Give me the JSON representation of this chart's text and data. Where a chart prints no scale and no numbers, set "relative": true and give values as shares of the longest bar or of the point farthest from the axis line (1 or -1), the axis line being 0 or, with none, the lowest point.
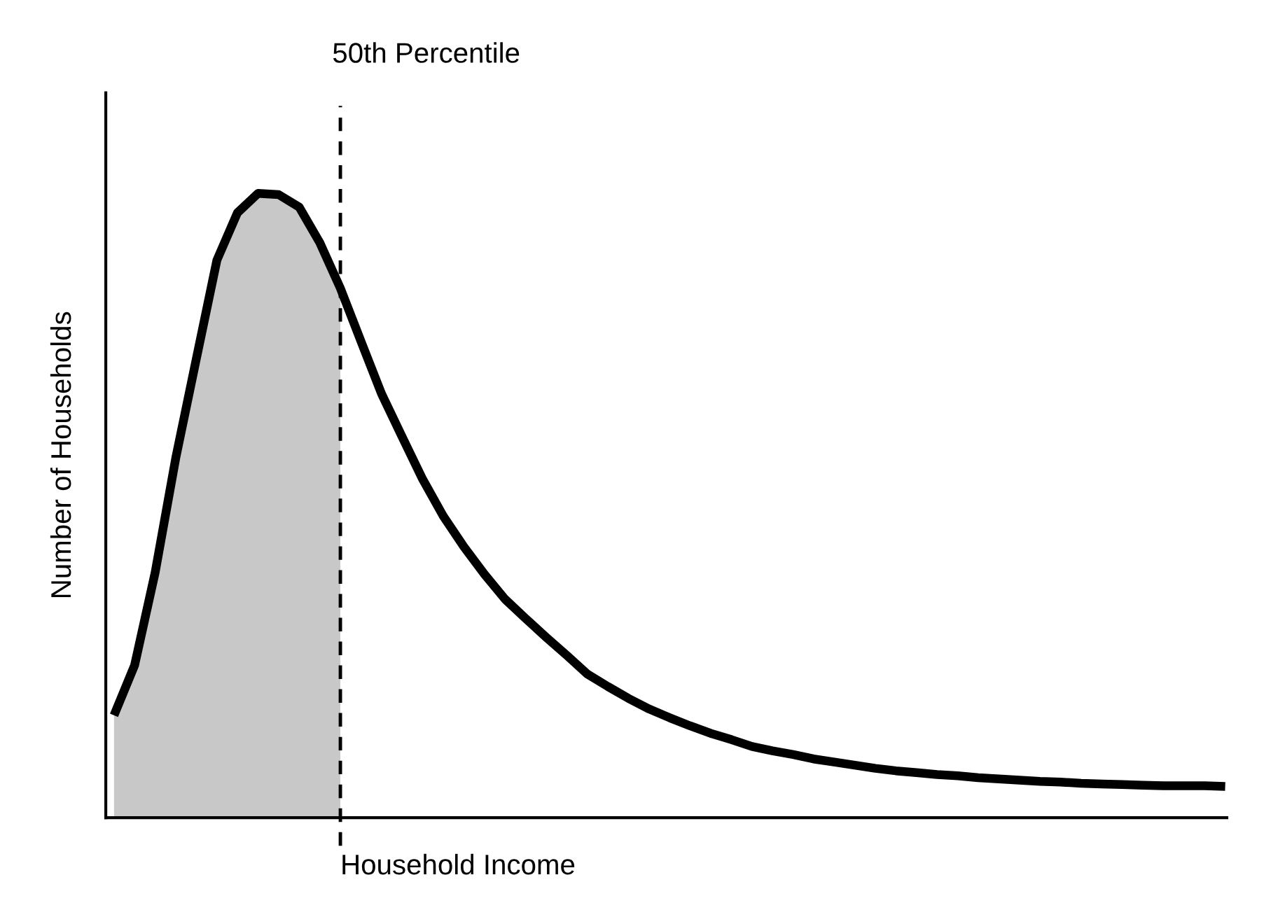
{
  "chart_data": {
    "type": "line",
    "relative": true,
    "xlabel": "Household Income",
    "ylabel": "Number of Households",
    "categories": [
      null,
      null,
      null,
      null,
      null,
      null,
      null,
      null,
      null,
      null,
      null,
      null,
      null,
      null,
      null,
      null,
      null,
      null,
      null,
      null,
      null,
      null,
      null,
      null,
      null,
      null,
      null,
      null,
      null,
      null,
      null,
      null,
      null,
      null,
      null,
      null,
      null,
      null,
      null,
      null,
      null,
      null,
      null,
      null,
      null,
      null,
      null,
      null,
      null,
      null,
      null,
      null,
      null,
      null,
      null
    ],
    "series": [
      {
        "type": "area",
        "color": "#c8c8c8",
        "values": [
          0.164,
          0.244,
          0.393,
          0.576,
          0.735,
          0.893,
          0.969,
          1.0,
          0.998,
          0.978,
          0.921,
          0.848,
          null,
          null,
          null,
          null,
          null,
          null,
          null,
          null,
          null,
          null,
          null,
          null,
          null,
          null,
          null,
          null,
          null,
          null,
          null,
          null,
          null,
          null,
          null,
          null,
          null,
          null,
          null,
          null,
          null,
          null,
          null,
          null,
          null,
          null,
          null,
          null,
          null,
          null,
          null,
          null,
          null,
          null,
          null
        ]
      },
      {
        "color": "#000000",
        "values": [
          0.164,
          0.244,
          0.393,
          0.576,
          0.735,
          0.893,
          0.969,
          1.0,
          0.998,
          0.978,
          0.921,
          0.848,
          0.763,
          0.679,
          0.61,
          0.542,
          0.483,
          0.434,
          0.39,
          0.35,
          0.319,
          0.289,
          0.26,
          0.23,
          0.21,
          0.191,
          0.174,
          0.16,
          0.147,
          0.135,
          0.125,
          0.114,
          0.107,
          0.101,
          0.094,
          0.089,
          0.084,
          0.079,
          0.075,
          0.072,
          0.069,
          0.067,
          0.064,
          0.062,
          0.06,
          0.058,
          0.057,
          0.055,
          0.054,
          0.053,
          0.052,
          0.051,
          0.051,
          0.051,
          0.05
        ]
      }
    ],
    "annotations": [
      "50th Percentile"
    ]
  }
}
